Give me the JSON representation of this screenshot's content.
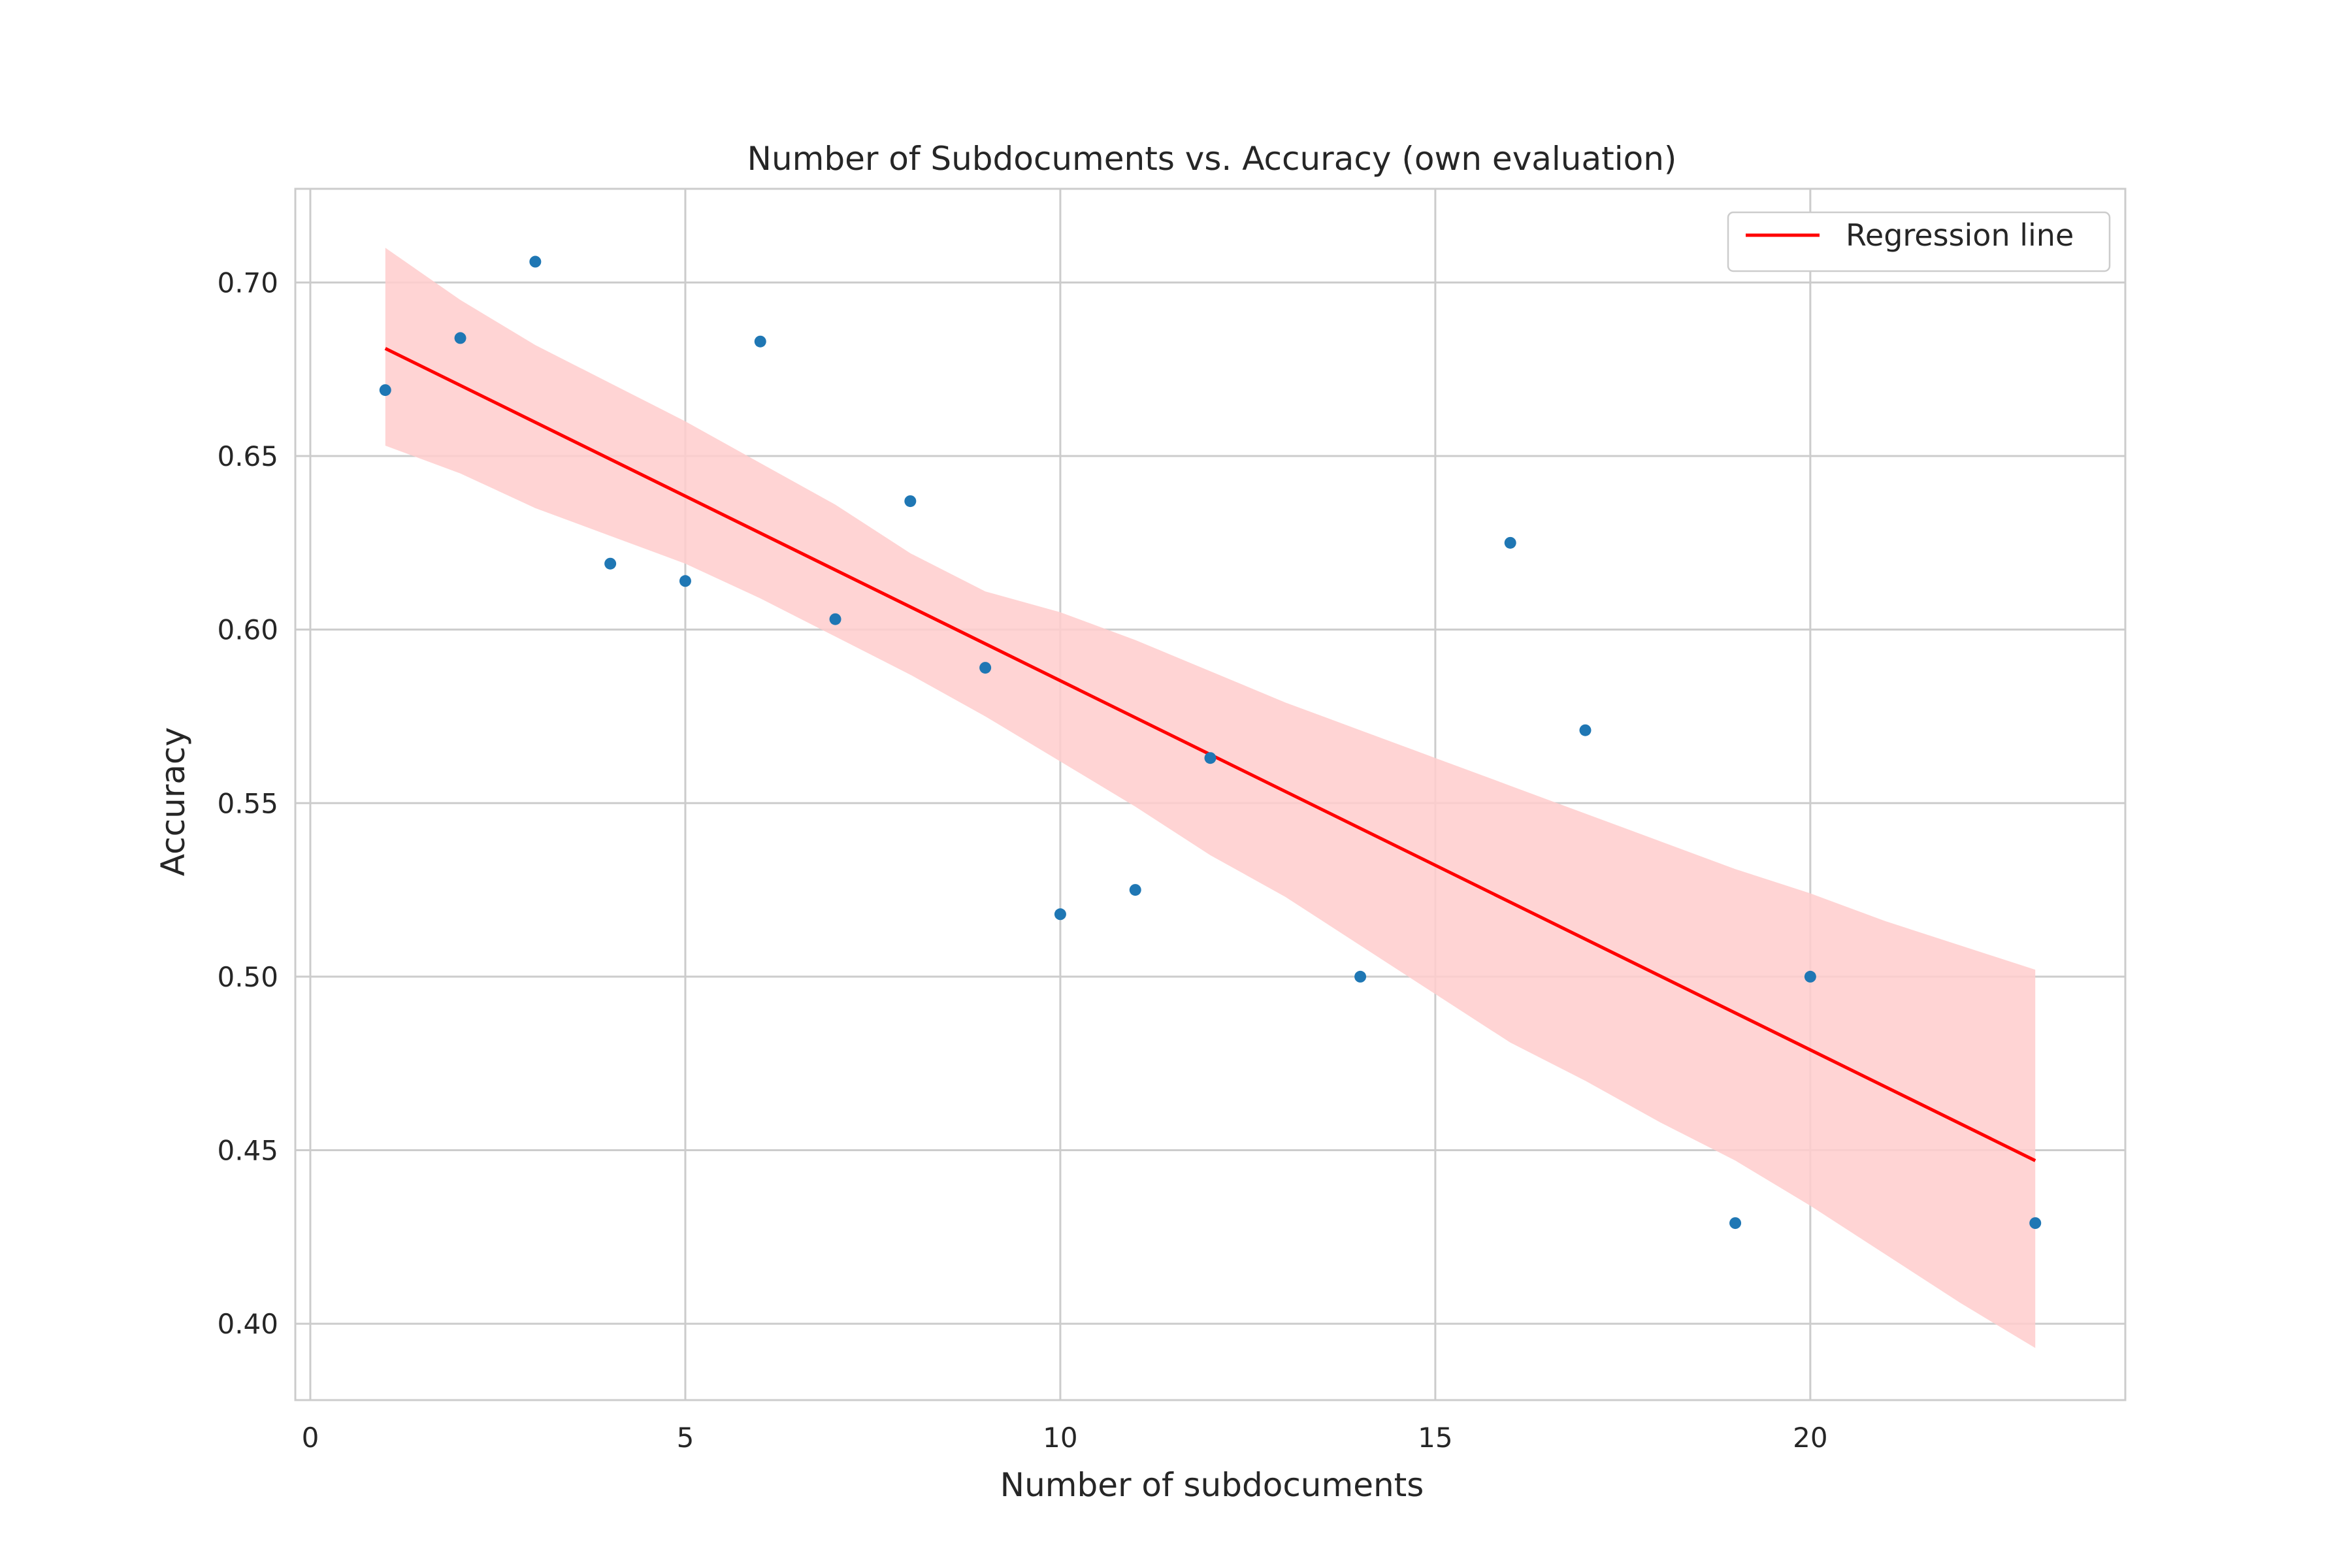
{
  "chart_data": {
    "type": "scatter",
    "title": "Number of Subdocuments vs. Accuracy (own evaluation)",
    "xlabel": "Number of subdocuments",
    "ylabel": "Accuracy",
    "xlim": [
      -0.2,
      24.2
    ],
    "ylim": [
      0.378,
      0.727
    ],
    "x_ticks": [
      0,
      5,
      10,
      15,
      20
    ],
    "x_tick_labels": [
      "0",
      "5",
      "10",
      "15",
      "20"
    ],
    "y_ticks": [
      0.4,
      0.45,
      0.5,
      0.55,
      0.6,
      0.65,
      0.7
    ],
    "y_tick_labels": [
      "0.40",
      "0.45",
      "0.50",
      "0.55",
      "0.60",
      "0.65",
      "0.70"
    ],
    "grid": true,
    "legend_position": "top-right",
    "points": {
      "color": "#1f77b4",
      "x": [
        1,
        2,
        3,
        4,
        5,
        6,
        7,
        8,
        9,
        10,
        11,
        12,
        14,
        16,
        17,
        19,
        20,
        23
      ],
      "y": [
        0.669,
        0.684,
        0.706,
        0.619,
        0.614,
        0.683,
        0.603,
        0.637,
        0.589,
        0.518,
        0.525,
        0.563,
        0.5,
        0.625,
        0.571,
        0.429,
        0.5,
        0.429
      ]
    },
    "regression": {
      "name": "Regression line",
      "color": "#ff0000",
      "x": [
        1,
        23
      ],
      "y": [
        0.681,
        0.447
      ]
    },
    "confidence_band": {
      "color": "#ffcccc",
      "x": [
        1,
        2,
        3,
        4,
        5,
        6,
        7,
        8,
        9,
        10,
        11,
        12,
        13,
        14,
        15,
        16,
        17,
        18,
        19,
        20,
        21,
        22,
        23
      ],
      "upper": [
        0.71,
        0.695,
        0.682,
        0.671,
        0.66,
        0.648,
        0.636,
        0.622,
        0.611,
        0.605,
        0.597,
        0.588,
        0.579,
        0.571,
        0.563,
        0.555,
        0.547,
        0.539,
        0.531,
        0.524,
        0.516,
        0.509,
        0.502
      ],
      "lower": [
        0.653,
        0.645,
        0.635,
        0.627,
        0.619,
        0.609,
        0.598,
        0.587,
        0.575,
        0.562,
        0.549,
        0.535,
        0.523,
        0.509,
        0.495,
        0.481,
        0.47,
        0.458,
        0.447,
        0.434,
        0.42,
        0.406,
        0.393
      ]
    }
  }
}
